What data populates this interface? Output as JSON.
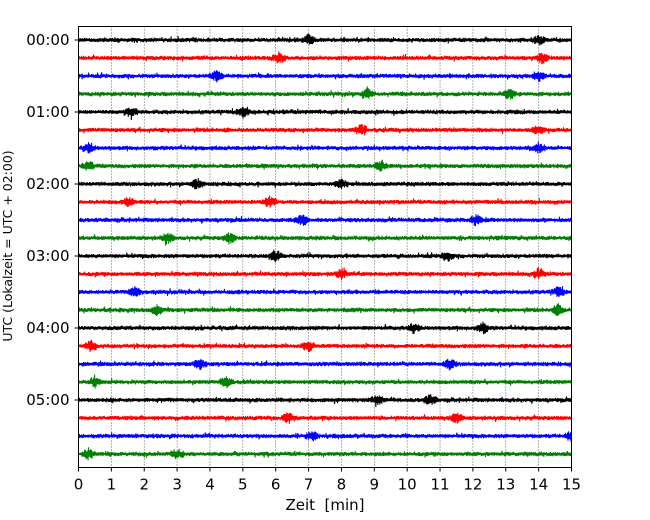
{
  "chart_data": {
    "type": "line",
    "xlabel": "Zeit  [min]",
    "ylabel": "UTC (Lokalzeit = UTC + 02:00)",
    "xlim": [
      0,
      15
    ],
    "x_ticks": [
      "0",
      "1",
      "2",
      "3",
      "4",
      "5",
      "6",
      "7",
      "8",
      "9",
      "10",
      "11",
      "12",
      "13",
      "14",
      "15"
    ],
    "y_ticks": [
      "00:00",
      "01:00",
      "02:00",
      "03:00",
      "04:00",
      "05:00"
    ],
    "trace_count": 24,
    "trace_interval_min": 15,
    "trace_colors": [
      "#000000",
      "#ff0000",
      "#0000ff",
      "#008000"
    ],
    "vertical_gridlines": "dotted",
    "events": [
      {
        "trace": 0,
        "x": 14.0
      },
      {
        "trace": 0,
        "x": 7.0
      },
      {
        "trace": 1,
        "x": 6.1
      },
      {
        "trace": 1,
        "x": 14.1
      },
      {
        "trace": 2,
        "x": 4.2
      },
      {
        "trace": 2,
        "x": 14.0
      },
      {
        "trace": 3,
        "x": 8.8
      },
      {
        "trace": 3,
        "x": 13.1
      },
      {
        "trace": 4,
        "x": 1.6
      },
      {
        "trace": 4,
        "x": 5.0
      },
      {
        "trace": 5,
        "x": 8.6
      },
      {
        "trace": 5,
        "x": 14.0
      },
      {
        "trace": 6,
        "x": 14.0
      },
      {
        "trace": 6,
        "x": 0.3
      },
      {
        "trace": 7,
        "x": 9.2
      },
      {
        "trace": 7,
        "x": 0.3
      },
      {
        "trace": 8,
        "x": 8.0
      },
      {
        "trace": 8,
        "x": 3.6
      },
      {
        "trace": 9,
        "x": 1.5
      },
      {
        "trace": 9,
        "x": 5.8
      },
      {
        "trace": 10,
        "x": 6.8
      },
      {
        "trace": 10,
        "x": 12.1
      },
      {
        "trace": 11,
        "x": 4.6
      },
      {
        "trace": 11,
        "x": 2.7
      },
      {
        "trace": 12,
        "x": 11.2
      },
      {
        "trace": 12,
        "x": 6.0
      },
      {
        "trace": 13,
        "x": 14.0
      },
      {
        "trace": 13,
        "x": 8.0
      },
      {
        "trace": 14,
        "x": 14.6
      },
      {
        "trace": 14,
        "x": 1.7
      },
      {
        "trace": 15,
        "x": 2.4
      },
      {
        "trace": 15,
        "x": 14.6
      },
      {
        "trace": 16,
        "x": 10.2
      },
      {
        "trace": 16,
        "x": 12.3
      },
      {
        "trace": 17,
        "x": 0.4
      },
      {
        "trace": 17,
        "x": 7.0
      },
      {
        "trace": 18,
        "x": 3.7
      },
      {
        "trace": 18,
        "x": 11.3
      },
      {
        "trace": 19,
        "x": 4.5
      },
      {
        "trace": 19,
        "x": 0.5
      },
      {
        "trace": 20,
        "x": 9.1
      },
      {
        "trace": 20,
        "x": 10.7
      },
      {
        "trace": 21,
        "x": 6.4
      },
      {
        "trace": 21,
        "x": 11.5
      },
      {
        "trace": 22,
        "x": 7.1
      },
      {
        "trace": 22,
        "x": 15.0
      },
      {
        "trace": 23,
        "x": 0.3
      },
      {
        "trace": 23,
        "x": 3.0
      }
    ]
  }
}
